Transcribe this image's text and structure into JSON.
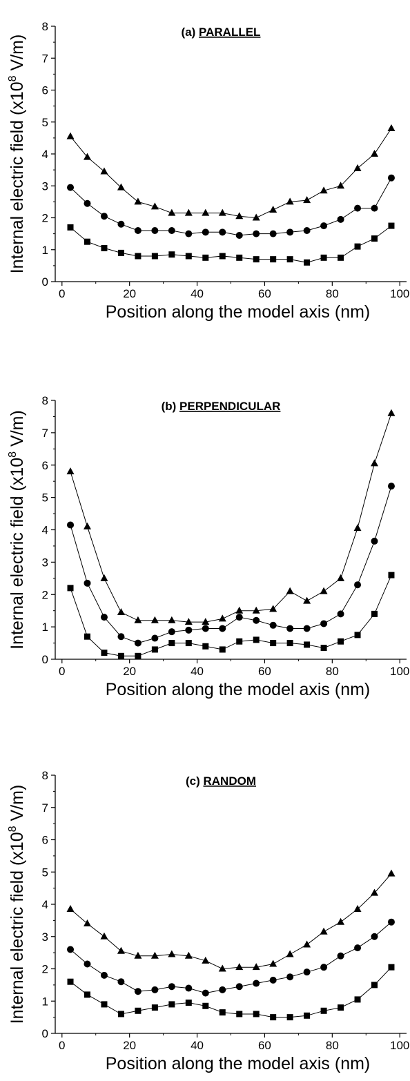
{
  "chart_data": [
    {
      "type": "line",
      "panel_label": "(a)",
      "title": "PARALLEL",
      "xlabel": "Position along the model axis (nm)",
      "ylabel": "Internal electric field (x10",
      "ylabel_sup": "8",
      "ylabel_unit": " V/m)",
      "xlim": [
        -2,
        102
      ],
      "ylim": [
        0,
        8
      ],
      "x_ticks": [
        0,
        20,
        40,
        60,
        80,
        100
      ],
      "y_ticks": [
        0,
        1,
        2,
        3,
        4,
        5,
        6,
        7,
        8
      ],
      "grid": false,
      "x": [
        2.5,
        7.5,
        12.5,
        17.5,
        22.5,
        27.5,
        32.5,
        37.5,
        42.5,
        47.5,
        52.5,
        57.5,
        62.5,
        67.5,
        72.5,
        77.5,
        82.5,
        87.5,
        92.5,
        97.5
      ],
      "series": [
        {
          "marker": "triangle",
          "values": [
            4.55,
            3.9,
            3.45,
            2.95,
            2.5,
            2.35,
            2.15,
            2.15,
            2.15,
            2.15,
            2.05,
            2.0,
            2.25,
            2.5,
            2.55,
            2.85,
            3.0,
            3.55,
            4.0,
            4.8
          ]
        },
        {
          "marker": "circle",
          "values": [
            2.95,
            2.45,
            2.05,
            1.8,
            1.6,
            1.6,
            1.6,
            1.5,
            1.55,
            1.55,
            1.45,
            1.5,
            1.5,
            1.55,
            1.6,
            1.75,
            1.95,
            2.3,
            2.3,
            3.25
          ]
        },
        {
          "marker": "square",
          "values": [
            1.7,
            1.25,
            1.05,
            0.9,
            0.8,
            0.8,
            0.85,
            0.8,
            0.75,
            0.8,
            0.75,
            0.7,
            0.7,
            0.7,
            0.6,
            0.75,
            0.75,
            1.1,
            1.35,
            1.75
          ]
        }
      ]
    },
    {
      "type": "line",
      "panel_label": "(b)",
      "title": "PERPENDICULAR",
      "xlabel": "Position along the model axis (nm)",
      "ylabel": "Internal electric field (x10",
      "ylabel_sup": "8",
      "ylabel_unit": " V/m)",
      "xlim": [
        -2,
        102
      ],
      "ylim": [
        0,
        8
      ],
      "x_ticks": [
        0,
        20,
        40,
        60,
        80,
        100
      ],
      "y_ticks": [
        0,
        1,
        2,
        3,
        4,
        5,
        6,
        7,
        8
      ],
      "grid": false,
      "x": [
        2.5,
        7.5,
        12.5,
        17.5,
        22.5,
        27.5,
        32.5,
        37.5,
        42.5,
        47.5,
        52.5,
        57.5,
        62.5,
        67.5,
        72.5,
        77.5,
        82.5,
        87.5,
        92.5,
        97.5
      ],
      "series": [
        {
          "marker": "triangle",
          "values": [
            5.8,
            4.1,
            2.5,
            1.45,
            1.2,
            1.2,
            1.2,
            1.15,
            1.15,
            1.25,
            1.5,
            1.5,
            1.55,
            2.1,
            1.8,
            2.1,
            2.5,
            4.05,
            6.05,
            7.6
          ]
        },
        {
          "marker": "circle",
          "values": [
            4.15,
            2.35,
            1.3,
            0.7,
            0.5,
            0.65,
            0.85,
            0.9,
            0.95,
            0.95,
            1.3,
            1.2,
            1.05,
            0.95,
            0.95,
            1.1,
            1.4,
            2.3,
            3.65,
            5.35
          ]
        },
        {
          "marker": "square",
          "values": [
            2.2,
            0.7,
            0.2,
            0.1,
            0.1,
            0.3,
            0.5,
            0.5,
            0.4,
            0.3,
            0.55,
            0.6,
            0.5,
            0.5,
            0.45,
            0.35,
            0.55,
            0.75,
            1.4,
            2.6
          ]
        }
      ]
    },
    {
      "type": "line",
      "panel_label": "(c)",
      "title": "RANDOM",
      "xlabel": "Position along the model axis (nm)",
      "ylabel": "Internal electric field (x10",
      "ylabel_sup": "8",
      "ylabel_unit": " V/m)",
      "xlim": [
        -2,
        102
      ],
      "ylim": [
        0,
        8
      ],
      "x_ticks": [
        0,
        20,
        40,
        60,
        80,
        100
      ],
      "y_ticks": [
        0,
        1,
        2,
        3,
        4,
        5,
        6,
        7,
        8
      ],
      "grid": false,
      "x": [
        2.5,
        7.5,
        12.5,
        17.5,
        22.5,
        27.5,
        32.5,
        37.5,
        42.5,
        47.5,
        52.5,
        57.5,
        62.5,
        67.5,
        72.5,
        77.5,
        82.5,
        87.5,
        92.5,
        97.5
      ],
      "series": [
        {
          "marker": "triangle",
          "values": [
            3.85,
            3.4,
            3.0,
            2.55,
            2.4,
            2.4,
            2.45,
            2.4,
            2.25,
            2.0,
            2.05,
            2.05,
            2.15,
            2.45,
            2.75,
            3.15,
            3.45,
            3.85,
            4.35,
            4.95
          ]
        },
        {
          "marker": "circle",
          "values": [
            2.6,
            2.15,
            1.8,
            1.6,
            1.3,
            1.35,
            1.45,
            1.4,
            1.25,
            1.35,
            1.45,
            1.55,
            1.65,
            1.75,
            1.9,
            2.05,
            2.4,
            2.65,
            3.0,
            3.45
          ]
        },
        {
          "marker": "square",
          "values": [
            1.6,
            1.2,
            0.9,
            0.6,
            0.7,
            0.8,
            0.9,
            0.95,
            0.85,
            0.65,
            0.6,
            0.6,
            0.5,
            0.5,
            0.55,
            0.7,
            0.8,
            1.05,
            1.5,
            2.05
          ]
        }
      ]
    }
  ]
}
